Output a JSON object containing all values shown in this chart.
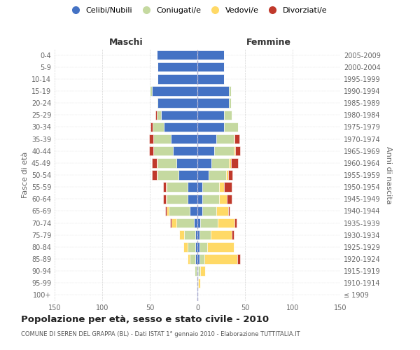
{
  "age_groups": [
    "100+",
    "95-99",
    "90-94",
    "85-89",
    "80-84",
    "75-79",
    "70-74",
    "65-69",
    "60-64",
    "55-59",
    "50-54",
    "45-49",
    "40-44",
    "35-39",
    "30-34",
    "25-29",
    "20-24",
    "15-19",
    "10-14",
    "5-9",
    "0-4"
  ],
  "birth_years": [
    "≤ 1909",
    "1910-1914",
    "1915-1919",
    "1920-1924",
    "1925-1929",
    "1930-1934",
    "1935-1939",
    "1940-1944",
    "1945-1949",
    "1950-1954",
    "1955-1959",
    "1960-1964",
    "1965-1969",
    "1970-1974",
    "1975-1979",
    "1980-1984",
    "1985-1989",
    "1990-1994",
    "1995-1999",
    "2000-2004",
    "2005-2009"
  ],
  "male_celibi": [
    1,
    0,
    1,
    2,
    2,
    2,
    4,
    8,
    10,
    10,
    20,
    22,
    26,
    28,
    35,
    38,
    42,
    48,
    42,
    42,
    43
  ],
  "male_coniugati": [
    0,
    1,
    2,
    6,
    8,
    12,
    18,
    22,
    22,
    22,
    22,
    20,
    20,
    18,
    12,
    5,
    1,
    2,
    0,
    0,
    0
  ],
  "male_vedovi": [
    0,
    0,
    0,
    2,
    5,
    5,
    5,
    2,
    1,
    1,
    1,
    1,
    0,
    0,
    0,
    0,
    0,
    0,
    0,
    0,
    0
  ],
  "male_divorziati": [
    0,
    0,
    0,
    0,
    0,
    0,
    2,
    2,
    3,
    3,
    5,
    5,
    5,
    5,
    2,
    1,
    0,
    0,
    0,
    0,
    0
  ],
  "female_celibi": [
    1,
    1,
    1,
    2,
    2,
    2,
    3,
    5,
    5,
    5,
    12,
    15,
    18,
    20,
    28,
    28,
    33,
    33,
    28,
    28,
    28
  ],
  "female_coniugati": [
    0,
    0,
    2,
    5,
    8,
    12,
    18,
    15,
    18,
    18,
    18,
    18,
    20,
    18,
    15,
    8,
    2,
    2,
    0,
    0,
    0
  ],
  "female_vedovi": [
    0,
    2,
    5,
    35,
    28,
    22,
    18,
    12,
    8,
    5,
    2,
    2,
    2,
    1,
    0,
    0,
    0,
    0,
    0,
    0,
    0
  ],
  "female_divorziati": [
    0,
    0,
    0,
    3,
    0,
    2,
    2,
    2,
    5,
    8,
    5,
    8,
    5,
    5,
    0,
    0,
    0,
    0,
    0,
    0,
    0
  ],
  "colors": {
    "celibi": "#4472c4",
    "coniugati": "#c5d9a0",
    "vedovi": "#ffd966",
    "divorziati": "#c0392b"
  },
  "xlim": 150,
  "title": "Popolazione per età, sesso e stato civile - 2010",
  "subtitle": "COMUNE DI SEREN DEL GRAPPA (BL) - Dati ISTAT 1° gennaio 2010 - Elaborazione TUTTITALIA.IT",
  "ylabel_left": "Fasce di età",
  "ylabel_right": "Anni di nascita",
  "legend_labels": [
    "Celibi/Nubili",
    "Coniugati/e",
    "Vedovi/e",
    "Divorziati/e"
  ],
  "maschi_label": "Maschi",
  "femmine_label": "Femmine",
  "background_color": "#ffffff",
  "grid_color": "#cccccc"
}
